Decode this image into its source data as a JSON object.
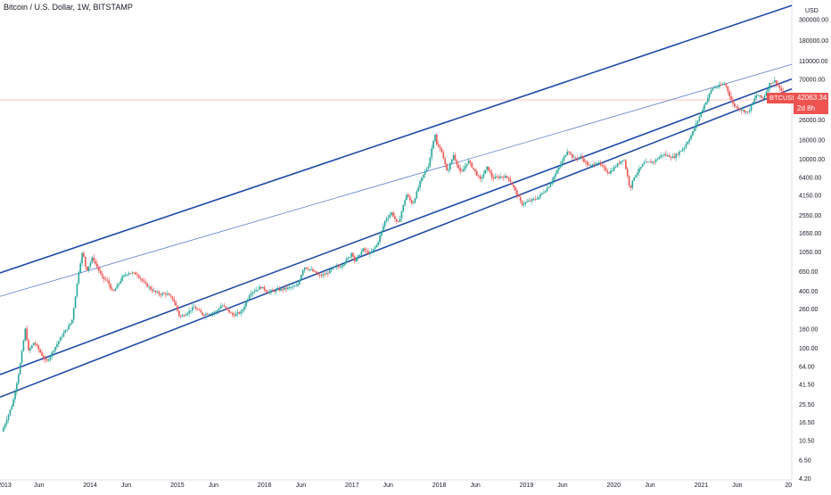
{
  "chart_data": {
    "type": "candlestick",
    "title": "Bitcoin / U.S. Dollar, 1W, BITSTAMP",
    "y_scale": "log",
    "ylim": [
      4,
      480000
    ],
    "y_axis_unit": "USD",
    "y_ticks": [
      "480000.00",
      "300000.00",
      "180000.00",
      "110000.00",
      "70000.00",
      "42063.34",
      "26000.00",
      "16000.00",
      "10000.00",
      "6400.00",
      "4150.00",
      "2550.00",
      "1650.00",
      "1050.00",
      "650.00",
      "400.00",
      "260.00",
      "160.00",
      "100.00",
      "64.00",
      "41.50",
      "25.50",
      "16.50",
      "10.50",
      "6.50",
      "4.20"
    ],
    "x_range": [
      "2012-12-20",
      "2022-01-15"
    ],
    "x_ticks": [
      "2013",
      "Jun",
      "2014",
      "Jun",
      "2015",
      "Jun",
      "2016",
      "Jun",
      "2017",
      "Jun",
      "2018",
      "Jun",
      "2019",
      "Jun",
      "2020",
      "Jun",
      "2021",
      "Jun",
      "20"
    ],
    "last_price": "42063.34",
    "last_price_value": 42063.34,
    "symbol_badge": "BTCUSD",
    "countdown": "2d 8h",
    "colors": {
      "up": "#26a69a",
      "down": "#ef5350",
      "channel": "#1f4aa8",
      "thin_channel": "#5b7fc7",
      "price_line": "#ef5350"
    },
    "price_path": [
      [
        "2013-01-01",
        13
      ],
      [
        "2013-02-15",
        26
      ],
      [
        "2013-03-15",
        60
      ],
      [
        "2013-04-10",
        170
      ],
      [
        "2013-04-20",
        90
      ],
      [
        "2013-05-15",
        115
      ],
      [
        "2013-07-05",
        70
      ],
      [
        "2013-09-01",
        125
      ],
      [
        "2013-10-20",
        190
      ],
      [
        "2013-11-20",
        700
      ],
      [
        "2013-12-04",
        1050
      ],
      [
        "2013-12-20",
        650
      ],
      [
        "2014-01-15",
        900
      ],
      [
        "2014-02-25",
        550
      ],
      [
        "2014-03-20",
        500
      ],
      [
        "2014-04-10",
        380
      ],
      [
        "2014-05-20",
        560
      ],
      [
        "2014-06-15",
        630
      ],
      [
        "2014-07-20",
        600
      ],
      [
        "2014-08-20",
        480
      ],
      [
        "2014-09-25",
        400
      ],
      [
        "2014-10-20",
        370
      ],
      [
        "2014-11-20",
        375
      ],
      [
        "2014-12-20",
        320
      ],
      [
        "2015-01-15",
        210
      ],
      [
        "2015-02-20",
        240
      ],
      [
        "2015-03-15",
        270
      ],
      [
        "2015-04-20",
        225
      ],
      [
        "2015-06-15",
        240
      ],
      [
        "2015-07-10",
        285
      ],
      [
        "2015-08-25",
        220
      ],
      [
        "2015-10-01",
        240
      ],
      [
        "2015-11-05",
        380
      ],
      [
        "2015-12-20",
        440
      ],
      [
        "2016-01-20",
        390
      ],
      [
        "2016-03-15",
        415
      ],
      [
        "2016-05-20",
        450
      ],
      [
        "2016-06-17",
        720
      ],
      [
        "2016-07-20",
        660
      ],
      [
        "2016-08-20",
        575
      ],
      [
        "2016-09-20",
        610
      ],
      [
        "2016-10-20",
        700
      ],
      [
        "2016-11-20",
        740
      ],
      [
        "2016-12-25",
        920
      ],
      [
        "2017-01-05",
        1050
      ],
      [
        "2017-01-15",
        820
      ],
      [
        "2017-02-20",
        1100
      ],
      [
        "2017-03-20",
        980
      ],
      [
        "2017-04-20",
        1250
      ],
      [
        "2017-05-25",
        2300
      ],
      [
        "2017-06-20",
        2700
      ],
      [
        "2017-07-15",
        2000
      ],
      [
        "2017-08-20",
        4200
      ],
      [
        "2017-09-15",
        3300
      ],
      [
        "2017-10-20",
        6000
      ],
      [
        "2017-11-20",
        8500
      ],
      [
        "2017-12-17",
        19000
      ],
      [
        "2017-12-25",
        14000
      ],
      [
        "2018-01-15",
        12000
      ],
      [
        "2018-02-06",
        7200
      ],
      [
        "2018-03-05",
        11000
      ],
      [
        "2018-04-05",
        6900
      ],
      [
        "2018-05-05",
        9600
      ],
      [
        "2018-06-25",
        6000
      ],
      [
        "2018-07-25",
        8200
      ],
      [
        "2018-08-15",
        6200
      ],
      [
        "2018-09-20",
        6500
      ],
      [
        "2018-10-20",
        6400
      ],
      [
        "2018-11-20",
        4500
      ],
      [
        "2018-12-15",
        3300
      ],
      [
        "2019-01-20",
        3600
      ],
      [
        "2019-02-20",
        3850
      ],
      [
        "2019-04-05",
        5000
      ],
      [
        "2019-05-25",
        8500
      ],
      [
        "2019-06-26",
        12500
      ],
      [
        "2019-07-20",
        10000
      ],
      [
        "2019-08-20",
        10500
      ],
      [
        "2019-09-25",
        8200
      ],
      [
        "2019-10-26",
        9300
      ],
      [
        "2019-12-15",
        7100
      ],
      [
        "2020-01-20",
        8700
      ],
      [
        "2020-02-15",
        10200
      ],
      [
        "2020-03-13",
        4800
      ],
      [
        "2020-03-30",
        6500
      ],
      [
        "2020-05-10",
        9000
      ],
      [
        "2020-06-20",
        9300
      ],
      [
        "2020-07-28",
        11200
      ],
      [
        "2020-09-10",
        10300
      ],
      [
        "2020-10-25",
        13200
      ],
      [
        "2020-11-25",
        18000
      ],
      [
        "2020-12-28",
        28000
      ],
      [
        "2021-01-15",
        36000
      ],
      [
        "2021-02-20",
        56000
      ],
      [
        "2021-03-15",
        58000
      ],
      [
        "2021-04-14",
        63000
      ],
      [
        "2021-05-19",
        37000
      ],
      [
        "2021-06-20",
        33000
      ],
      [
        "2021-07-20",
        31000
      ],
      [
        "2021-08-25",
        48000
      ],
      [
        "2021-09-20",
        43000
      ],
      [
        "2021-10-20",
        64000
      ],
      [
        "2021-11-10",
        67000
      ],
      [
        "2021-12-15",
        48000
      ],
      [
        "2022-01-10",
        42063
      ]
    ],
    "channel_lines": [
      {
        "name": "",
        "style": "thick",
        "from": [
          "2012-12-20",
          620
        ],
        "to": [
          "2022-01-15",
          420000
        ]
      },
      {
        "name": "",
        "style": "thin",
        "from": [
          "2012-12-20",
          350
        ],
        "to": [
          "2022-01-15",
          100000
        ]
      },
      {
        "name": "",
        "style": "thick",
        "from": [
          "2012-12-20",
          52
        ],
        "to": [
          "2022-01-15",
          70000
        ]
      },
      {
        "name": "",
        "style": "thick",
        "from": [
          "2012-12-20",
          30
        ],
        "to": [
          "2022-01-15",
          55000
        ]
      }
    ]
  }
}
